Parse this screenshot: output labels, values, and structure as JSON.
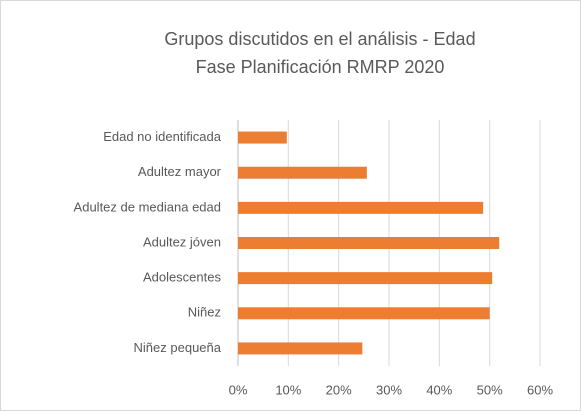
{
  "chart_data": {
    "type": "bar",
    "orientation": "horizontal",
    "title": [
      "Grupos discutidos en el análisis - Edad",
      "Fase Planificación RMRP 2020"
    ],
    "categories": [
      "Edad no identificada",
      "Adultez mayor",
      "Adultez de mediana edad",
      "Adultez jóven",
      "Adolescentes",
      "Niñez",
      "Niñez pequeña"
    ],
    "values": [
      9.7,
      25.6,
      48.7,
      51.9,
      50.5,
      50,
      24.7
    ],
    "color": "#ed7d31",
    "xlim": [
      0,
      60
    ],
    "xticks": [
      {
        "value": 0,
        "label": "0%"
      },
      {
        "value": 10,
        "label": "10%"
      },
      {
        "value": 20,
        "label": "20%"
      },
      {
        "value": 30,
        "label": "30%"
      },
      {
        "value": 40,
        "label": "40%"
      },
      {
        "value": 50,
        "label": "50%"
      },
      {
        "value": 60,
        "label": "60%"
      }
    ],
    "grid": true
  }
}
